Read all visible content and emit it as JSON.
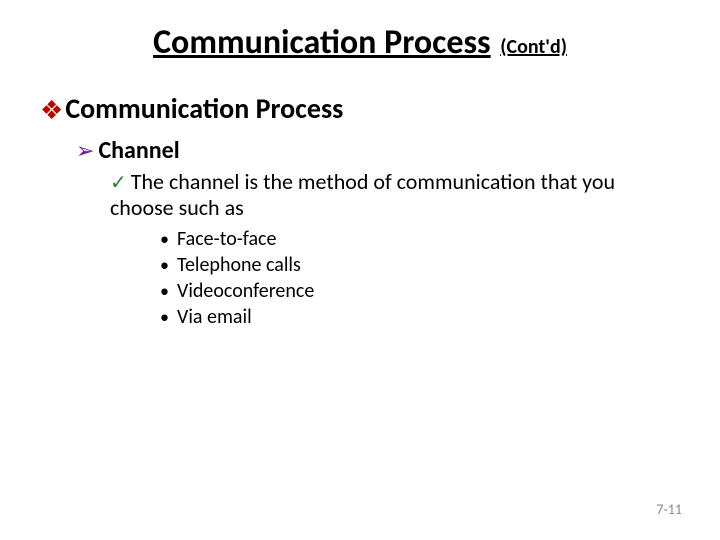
{
  "title": {
    "main": "Communication Process",
    "suffix": "(Cont'd)"
  },
  "bullets": {
    "lvl1": {
      "glyph": "❖",
      "color": "#c00000",
      "text": "Communication Process"
    },
    "lvl2": {
      "glyph": "➢",
      "color": "#6a1b9a",
      "text": "Channel"
    },
    "lvl3": {
      "glyph": "✓",
      "color": "#2e7d32",
      "text": "The channel is the method of communication that you choose such as"
    },
    "lvl4_glyph": "•",
    "lvl4_items": [
      "Face-to-face",
      "Telephone calls",
      "Videoconference",
      "Via email"
    ]
  },
  "page_number": "7-11",
  "style": {
    "background": "#ffffff",
    "title_fontsize": 34,
    "suffix_fontsize": 20,
    "lvl1_fontsize": 28,
    "lvl2_fontsize": 24,
    "lvl3_fontsize": 22,
    "lvl4_fontsize": 20,
    "pagenum_color": "#888888"
  }
}
